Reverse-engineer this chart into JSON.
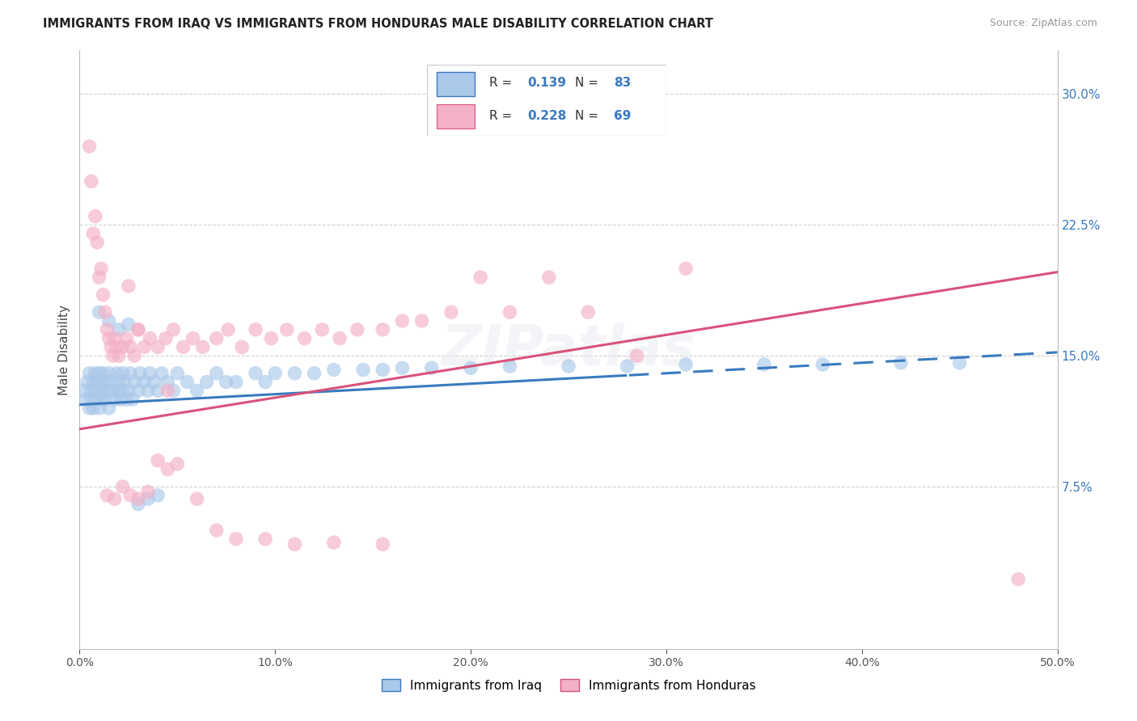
{
  "title": "IMMIGRANTS FROM IRAQ VS IMMIGRANTS FROM HONDURAS MALE DISABILITY CORRELATION CHART",
  "source": "Source: ZipAtlas.com",
  "ylabel": "Male Disability",
  "legend_label_1": "Immigrants from Iraq",
  "legend_label_2": "Immigrants from Honduras",
  "R1": 0.139,
  "N1": 83,
  "R2": 0.228,
  "N2": 69,
  "color_iraq": "#aac8ea",
  "color_honduras": "#f4b0c8",
  "line_color_iraq": "#3a7abf",
  "line_color_honduras": "#d9527a",
  "legend_text_color": "#3a7abf",
  "xlim": [
    0.0,
    0.5
  ],
  "ylim": [
    -0.018,
    0.325
  ],
  "xticks": [
    0.0,
    0.1,
    0.2,
    0.3,
    0.4,
    0.5
  ],
  "yticks_right": [
    0.075,
    0.15,
    0.225,
    0.3
  ],
  "ytick_labels_right": [
    "7.5%",
    "15.0%",
    "22.5%",
    "30.0%"
  ],
  "xtick_labels": [
    "0.0%",
    "10.0%",
    "20.0%",
    "30.0%",
    "40.0%",
    "50.0%"
  ],
  "iraq_x": [
    0.002,
    0.003,
    0.004,
    0.005,
    0.005,
    0.006,
    0.006,
    0.007,
    0.007,
    0.008,
    0.008,
    0.009,
    0.009,
    0.01,
    0.01,
    0.01,
    0.011,
    0.011,
    0.012,
    0.012,
    0.013,
    0.013,
    0.014,
    0.015,
    0.015,
    0.016,
    0.017,
    0.018,
    0.019,
    0.02,
    0.02,
    0.021,
    0.022,
    0.022,
    0.023,
    0.024,
    0.025,
    0.026,
    0.027,
    0.028,
    0.03,
    0.031,
    0.033,
    0.035,
    0.036,
    0.038,
    0.04,
    0.042,
    0.045,
    0.048,
    0.05,
    0.055,
    0.06,
    0.065,
    0.07,
    0.075,
    0.08,
    0.09,
    0.095,
    0.1,
    0.11,
    0.12,
    0.13,
    0.145,
    0.155,
    0.165,
    0.18,
    0.2,
    0.22,
    0.25,
    0.28,
    0.31,
    0.35,
    0.38,
    0.42,
    0.45,
    0.01,
    0.015,
    0.02,
    0.025,
    0.03,
    0.035,
    0.04
  ],
  "iraq_y": [
    0.13,
    0.125,
    0.135,
    0.12,
    0.14,
    0.125,
    0.13,
    0.135,
    0.12,
    0.13,
    0.14,
    0.125,
    0.135,
    0.13,
    0.12,
    0.14,
    0.135,
    0.125,
    0.13,
    0.14,
    0.125,
    0.135,
    0.13,
    0.14,
    0.12,
    0.135,
    0.13,
    0.125,
    0.14,
    0.13,
    0.135,
    0.125,
    0.14,
    0.13,
    0.135,
    0.125,
    0.13,
    0.14,
    0.125,
    0.135,
    0.13,
    0.14,
    0.135,
    0.13,
    0.14,
    0.135,
    0.13,
    0.14,
    0.135,
    0.13,
    0.14,
    0.135,
    0.13,
    0.135,
    0.14,
    0.135,
    0.135,
    0.14,
    0.135,
    0.14,
    0.14,
    0.14,
    0.142,
    0.142,
    0.142,
    0.143,
    0.143,
    0.143,
    0.144,
    0.144,
    0.144,
    0.145,
    0.145,
    0.145,
    0.146,
    0.146,
    0.175,
    0.17,
    0.165,
    0.168,
    0.065,
    0.068,
    0.07
  ],
  "honduras_x": [
    0.005,
    0.006,
    0.007,
    0.008,
    0.009,
    0.01,
    0.011,
    0.012,
    0.013,
    0.014,
    0.015,
    0.016,
    0.017,
    0.018,
    0.019,
    0.02,
    0.022,
    0.024,
    0.026,
    0.028,
    0.03,
    0.033,
    0.036,
    0.04,
    0.044,
    0.048,
    0.053,
    0.058,
    0.063,
    0.07,
    0.076,
    0.083,
    0.09,
    0.098,
    0.106,
    0.115,
    0.124,
    0.133,
    0.142,
    0.155,
    0.165,
    0.175,
    0.19,
    0.205,
    0.22,
    0.24,
    0.26,
    0.285,
    0.31,
    0.48,
    0.014,
    0.018,
    0.022,
    0.026,
    0.03,
    0.035,
    0.04,
    0.045,
    0.05,
    0.06,
    0.07,
    0.08,
    0.095,
    0.11,
    0.13,
    0.155,
    0.025,
    0.03,
    0.045
  ],
  "honduras_y": [
    0.27,
    0.25,
    0.22,
    0.23,
    0.215,
    0.195,
    0.2,
    0.185,
    0.175,
    0.165,
    0.16,
    0.155,
    0.15,
    0.16,
    0.155,
    0.15,
    0.155,
    0.16,
    0.155,
    0.15,
    0.165,
    0.155,
    0.16,
    0.155,
    0.16,
    0.165,
    0.155,
    0.16,
    0.155,
    0.16,
    0.165,
    0.155,
    0.165,
    0.16,
    0.165,
    0.16,
    0.165,
    0.16,
    0.165,
    0.165,
    0.17,
    0.17,
    0.175,
    0.195,
    0.175,
    0.195,
    0.175,
    0.15,
    0.2,
    0.022,
    0.07,
    0.068,
    0.075,
    0.07,
    0.068,
    0.072,
    0.09,
    0.085,
    0.088,
    0.068,
    0.05,
    0.045,
    0.045,
    0.042,
    0.043,
    0.042,
    0.19,
    0.165,
    0.13
  ]
}
